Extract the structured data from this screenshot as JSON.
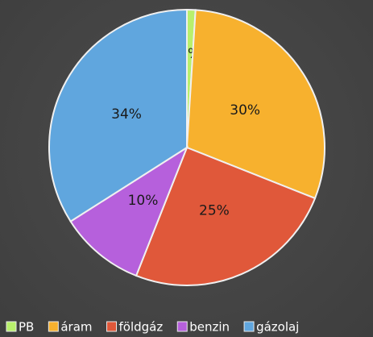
{
  "chart_data": {
    "type": "pie",
    "categories": [
      "PB",
      "áram",
      "földgáz",
      "benzin",
      "gázolaj"
    ],
    "values": [
      1,
      30,
      25,
      10,
      34
    ],
    "value_labels": [
      "1%",
      "30%",
      "25%",
      "10%",
      "34%"
    ],
    "colors": [
      "#b8f06c",
      "#f7b12e",
      "#e0583a",
      "#b660dc",
      "#60a6de"
    ],
    "legend": "bottom"
  }
}
